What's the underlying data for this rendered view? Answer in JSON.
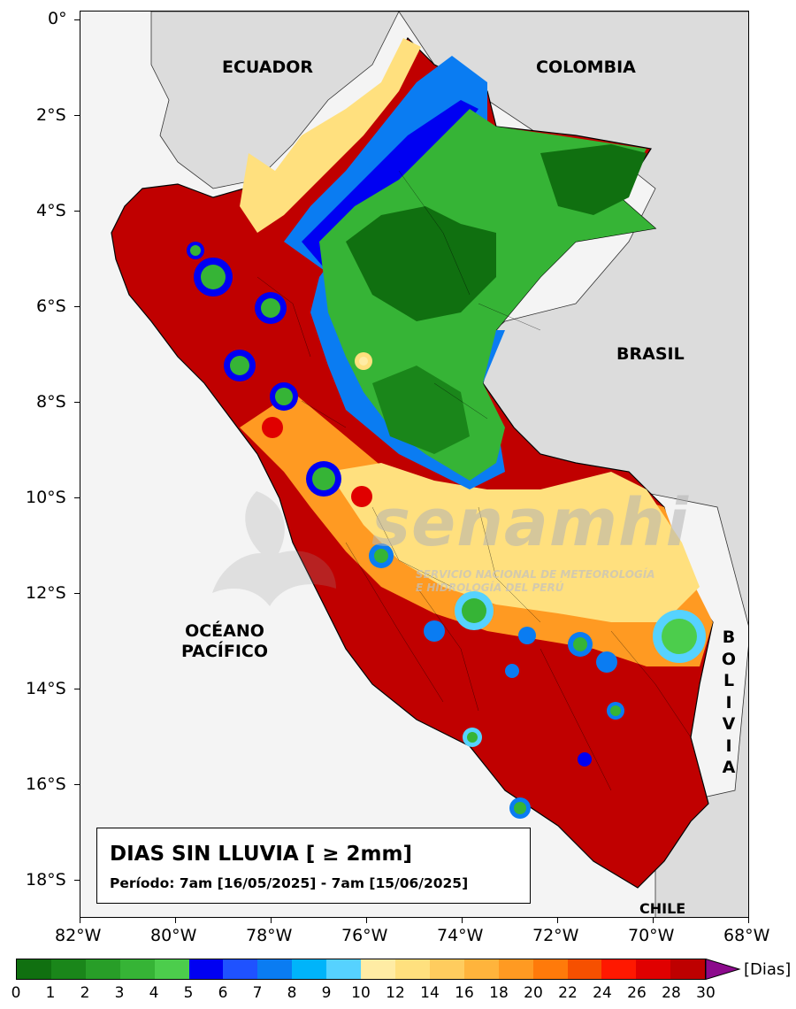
{
  "title": "DIAS SIN LLUVIA [ ≥ 2mm]",
  "subtitle": "Período: 7am [16/05/2025] - 7am [15/06/2025]",
  "country_labels": {
    "ecuador": "ECUADOR",
    "colombia": "COLOMBIA",
    "brasil": "BRASIL",
    "chile": "CHILE",
    "bolivia_letters": [
      "B",
      "O",
      "L",
      "I",
      "V",
      "I",
      "A"
    ]
  },
  "ocean_label": [
    "OCÉANO",
    "PACÍFICO"
  ],
  "lat_ticks": [
    "0°",
    "2°S",
    "4°S",
    "6°S",
    "8°S",
    "10°S",
    "12°S",
    "14°S",
    "16°S",
    "18°S"
  ],
  "lon_ticks": [
    "82°W",
    "80°W",
    "78°W",
    "76°W",
    "74°W",
    "72°W",
    "70°W",
    "68°W"
  ],
  "legend": {
    "unit": "[Dias]",
    "ticks": [
      "0",
      "1",
      "2",
      "3",
      "4",
      "5",
      "6",
      "7",
      "8",
      "9",
      "10",
      "12",
      "14",
      "16",
      "18",
      "20",
      "22",
      "24",
      "26",
      "28",
      "30"
    ],
    "colors": [
      "#107010",
      "#1a861a",
      "#289e28",
      "#36b436",
      "#4ccd4c",
      "#0000f2",
      "#1f52ff",
      "#0a7cf2",
      "#00b4fa",
      "#56d2ff",
      "#ffeca4",
      "#ffe07e",
      "#ffcc5e",
      "#ffb43c",
      "#ff9a22",
      "#ff7a0a",
      "#f65000",
      "#ff1800",
      "#e00000",
      "#be0000"
    ],
    "extend_color": "#8c0a8c"
  },
  "watermark": {
    "name": "senamhi",
    "line1": "SERVICIO NACIONAL DE METEOROLOGÍA",
    "line2": "E HIDROLOGÍA DEL PERÚ"
  }
}
